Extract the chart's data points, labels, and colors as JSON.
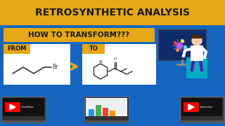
{
  "bg_color": "#1565C0",
  "header_color": "#E6A817",
  "header_text": "RETROSYNTHETIC ANALYSIS",
  "header_text_color": "#1a1a1a",
  "banner_color": "#E6A817",
  "how_text": "HOW TO TRANSFORM???",
  "how_text_color": "#1a1a1a",
  "from_text": "FROM",
  "to_text": "TO",
  "from_box_color": "#ffffff",
  "to_box_color": "#E6A817",
  "arrow_color": "#E6A817",
  "molecule_color": "#333333",
  "figsize": [
    3.2,
    1.8
  ],
  "dpi": 100
}
